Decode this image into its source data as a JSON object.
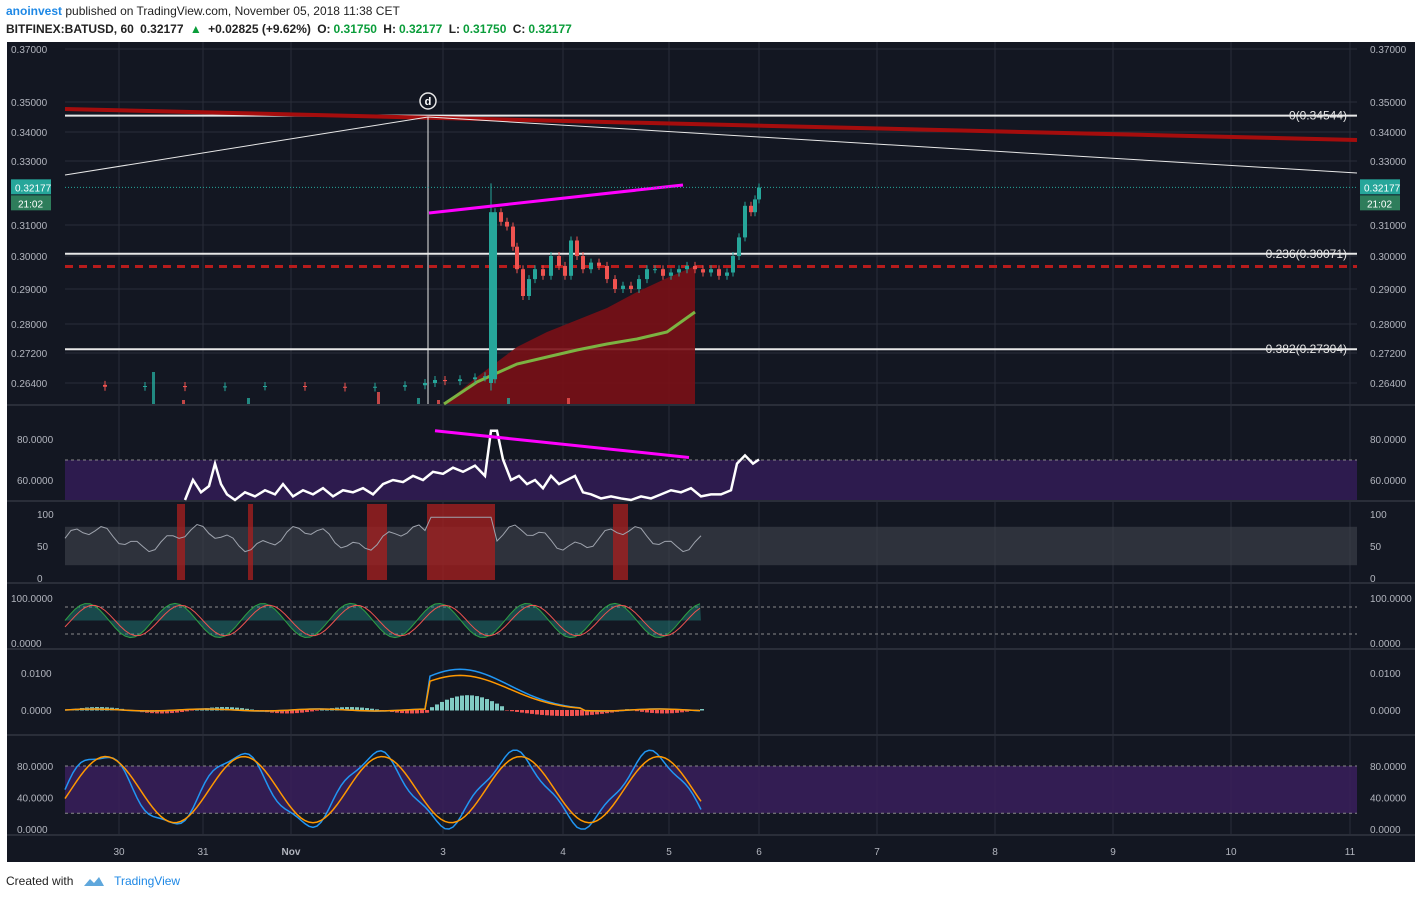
{
  "header": {
    "publisher": "anoinvest",
    "published_text": "published on TradingView.com, November 05, 2018 11:38 CET",
    "symbol": "BITFINEX:BATUSD, 60",
    "last": "0.32177",
    "change": "+0.02825 (+9.62%)",
    "open_label": "O:",
    "open": "0.31750",
    "high_label": "H:",
    "high": "0.32177",
    "low_label": "L:",
    "low": "0.31750",
    "close_label": "C:",
    "close": "0.32177"
  },
  "footer": {
    "created_with": "Created with",
    "brand": "TradingView"
  },
  "colors": {
    "background": "#131722",
    "up": "#26a69a",
    "down": "#ef5350",
    "magenta": "#ff00ff",
    "dark_red": "#8b0000",
    "green_ma": "#7cb342",
    "purple_band": "#2d1b4e",
    "text": "#b2b5be"
  },
  "chart_data": {
    "type": "candlestick",
    "x_ticks": [
      "30",
      "31",
      "Nov",
      "3",
      "4",
      "5",
      "6",
      "7",
      "8",
      "9",
      "10",
      "11"
    ],
    "price_axis_ticks": [
      "0.37000",
      "0.35000",
      "0.34000",
      "0.33000",
      "0.32177",
      "0.31000",
      "0.30000",
      "0.29000",
      "0.28000",
      "0.27200",
      "0.26400"
    ],
    "last_price_label": "0.32177",
    "countdown_label": "21:02",
    "pattern_marker": "d",
    "fibonacci": [
      {
        "label": "0(0.34544)",
        "value": 0.34544
      },
      {
        "label": "0.236(0.30071)",
        "value": 0.30071
      },
      {
        "label": "0.382(0.27304)",
        "value": 0.27304
      }
    ],
    "price_series": [
      [
        0,
        0.2635
      ],
      [
        40,
        0.263
      ],
      [
        80,
        0.2632
      ],
      [
        120,
        0.2629
      ],
      [
        160,
        0.2631
      ],
      [
        200,
        0.2632
      ],
      [
        240,
        0.263
      ],
      [
        280,
        0.2628
      ],
      [
        310,
        0.263
      ],
      [
        340,
        0.2634
      ],
      [
        360,
        0.264
      ],
      [
        370,
        0.2648
      ],
      [
        380,
        0.2645
      ],
      [
        395,
        0.265
      ],
      [
        410,
        0.2655
      ],
      [
        420,
        0.2658
      ],
      [
        426,
        0.265
      ],
      [
        430,
        0.314
      ],
      [
        436,
        0.311
      ],
      [
        442,
        0.3095
      ],
      [
        448,
        0.303
      ],
      [
        452,
        0.296
      ],
      [
        458,
        0.288
      ],
      [
        464,
        0.293
      ],
      [
        470,
        0.296
      ],
      [
        478,
        0.294
      ],
      [
        486,
        0.3
      ],
      [
        494,
        0.297
      ],
      [
        500,
        0.294
      ],
      [
        506,
        0.305
      ],
      [
        512,
        0.3
      ],
      [
        518,
        0.296
      ],
      [
        526,
        0.298
      ],
      [
        534,
        0.297
      ],
      [
        542,
        0.293
      ],
      [
        550,
        0.29
      ],
      [
        558,
        0.291
      ],
      [
        566,
        0.29
      ],
      [
        574,
        0.293
      ],
      [
        582,
        0.296
      ],
      [
        590,
        0.296
      ],
      [
        598,
        0.294
      ],
      [
        606,
        0.295
      ],
      [
        614,
        0.296
      ],
      [
        622,
        0.297
      ],
      [
        630,
        0.296
      ],
      [
        638,
        0.295
      ],
      [
        646,
        0.296
      ],
      [
        654,
        0.294
      ],
      [
        662,
        0.295
      ],
      [
        668,
        0.3
      ],
      [
        674,
        0.306
      ],
      [
        680,
        0.316
      ],
      [
        686,
        0.314
      ],
      [
        690,
        0.318
      ],
      [
        694,
        0.3217
      ]
    ],
    "rsi": {
      "axis_ticks": [
        "80.0000",
        "60.0000"
      ],
      "values": [
        [
          120,
          50
        ],
        [
          128,
          60
        ],
        [
          136,
          54
        ],
        [
          144,
          57
        ],
        [
          150,
          68
        ],
        [
          156,
          58
        ],
        [
          162,
          53
        ],
        [
          170,
          50
        ],
        [
          180,
          54
        ],
        [
          190,
          52
        ],
        [
          200,
          55
        ],
        [
          210,
          53
        ],
        [
          218,
          58
        ],
        [
          228,
          52
        ],
        [
          238,
          55
        ],
        [
          248,
          53
        ],
        [
          258,
          56
        ],
        [
          268,
          52
        ],
        [
          278,
          55
        ],
        [
          288,
          54
        ],
        [
          298,
          56
        ],
        [
          308,
          53
        ],
        [
          318,
          58
        ],
        [
          328,
          60
        ],
        [
          338,
          59
        ],
        [
          348,
          62
        ],
        [
          358,
          60
        ],
        [
          368,
          64
        ],
        [
          378,
          63
        ],
        [
          388,
          66
        ],
        [
          398,
          64
        ],
        [
          410,
          67
        ],
        [
          420,
          62
        ],
        [
          426,
          84
        ],
        [
          432,
          84
        ],
        [
          438,
          70
        ],
        [
          446,
          60
        ],
        [
          454,
          62
        ],
        [
          462,
          58
        ],
        [
          470,
          60
        ],
        [
          478,
          56
        ],
        [
          486,
          62
        ],
        [
          494,
          58
        ],
        [
          502,
          60
        ],
        [
          510,
          62
        ],
        [
          518,
          54
        ],
        [
          526,
          53
        ],
        [
          536,
          51
        ],
        [
          546,
          52
        ],
        [
          556,
          51
        ],
        [
          566,
          50
        ],
        [
          576,
          52
        ],
        [
          586,
          51
        ],
        [
          596,
          53
        ],
        [
          606,
          55
        ],
        [
          616,
          54
        ],
        [
          626,
          56
        ],
        [
          636,
          52
        ],
        [
          646,
          53
        ],
        [
          656,
          53
        ],
        [
          666,
          55
        ],
        [
          672,
          68
        ],
        [
          680,
          72
        ],
        [
          688,
          68
        ],
        [
          694,
          70
        ]
      ]
    },
    "osc1": {
      "axis_ticks": [
        "100",
        "50",
        "0"
      ]
    },
    "osc2": {
      "axis_ticks": [
        "100.0000",
        "0.0000"
      ]
    },
    "macd": {
      "axis_ticks": [
        "0.0100",
        "0.0000"
      ]
    },
    "stoch": {
      "axis_ticks": [
        "80.0000",
        "40.0000",
        "0.0000"
      ]
    }
  }
}
